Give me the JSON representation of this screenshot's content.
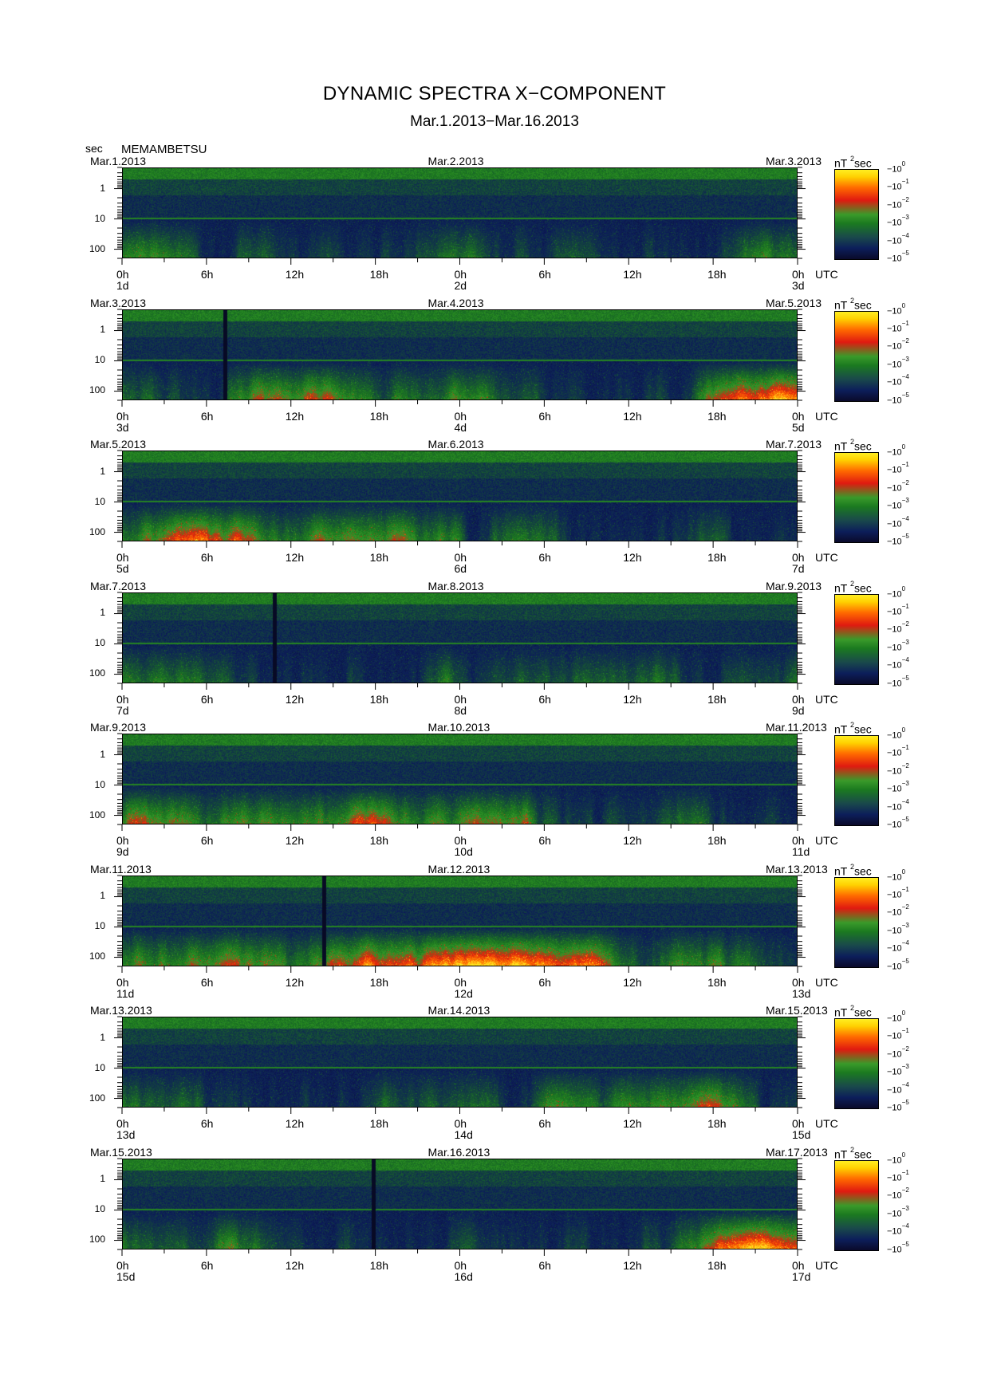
{
  "title": "DYNAMIC SPECTRA X−COMPONENT",
  "subtitle": "Mar.1.2013−Mar.16.2013",
  "y_unit": "sec",
  "station": "MEMAMBETSU",
  "x_tick_labels": [
    "0h",
    "6h",
    "12h",
    "18h",
    "0h",
    "6h",
    "12h",
    "18h",
    "0h"
  ],
  "utc_label": "UTC",
  "y_tick_labels": [
    "1",
    "10",
    "100"
  ],
  "colorbar": {
    "unit_base": "nT",
    "unit_exp": "2",
    "unit_suffix": "sec",
    "label_base": "10",
    "labels": [
      "0",
      "−1",
      "−2",
      "−3",
      "−4",
      "−5"
    ],
    "colors": [
      "#ffee22",
      "#ff6a00",
      "#e01a10",
      "#1b7a20",
      "#0c1e5a",
      "#0a0a2a"
    ]
  },
  "chart_data": {
    "type": "heatmap",
    "x_label": "UTC",
    "y_label": "sec",
    "y_scale": "log",
    "y_range": [
      0.2,
      200
    ],
    "color_scale": "log",
    "color_range": [
      1e-05,
      1
    ],
    "panels": [
      {
        "start": "Mar.1.2013",
        "mid": "Mar.2.2013",
        "end": "Mar.3.2013",
        "day_labels": [
          "1d",
          "2d",
          "3d"
        ]
      },
      {
        "start": "Mar.3.2013",
        "mid": "Mar.4.2013",
        "end": "Mar.5.2013",
        "day_labels": [
          "3d",
          "4d",
          "5d"
        ]
      },
      {
        "start": "Mar.5.2013",
        "mid": "Mar.6.2013",
        "end": "Mar.7.2013",
        "day_labels": [
          "5d",
          "6d",
          "7d"
        ]
      },
      {
        "start": "Mar.7.2013",
        "mid": "Mar.8.2013",
        "end": "Mar.9.2013",
        "day_labels": [
          "7d",
          "8d",
          "9d"
        ]
      },
      {
        "start": "Mar.9.2013",
        "mid": "Mar.10.2013",
        "end": "Mar.11.2013",
        "day_labels": [
          "9d",
          "10d",
          "11d"
        ]
      },
      {
        "start": "Mar.11.2013",
        "mid": "Mar.12.2013",
        "end": "Mar.13.2013",
        "day_labels": [
          "11d",
          "12d",
          "13d"
        ]
      },
      {
        "start": "Mar.13.2013",
        "mid": "Mar.14.2013",
        "end": "Mar.15.2013",
        "day_labels": [
          "13d",
          "14d",
          "15d"
        ]
      },
      {
        "start": "Mar.15.2013",
        "mid": "Mar.16.2013",
        "end": "Mar.17.2013",
        "day_labels": [
          "15d",
          "16d",
          "17d"
        ]
      }
    ]
  }
}
